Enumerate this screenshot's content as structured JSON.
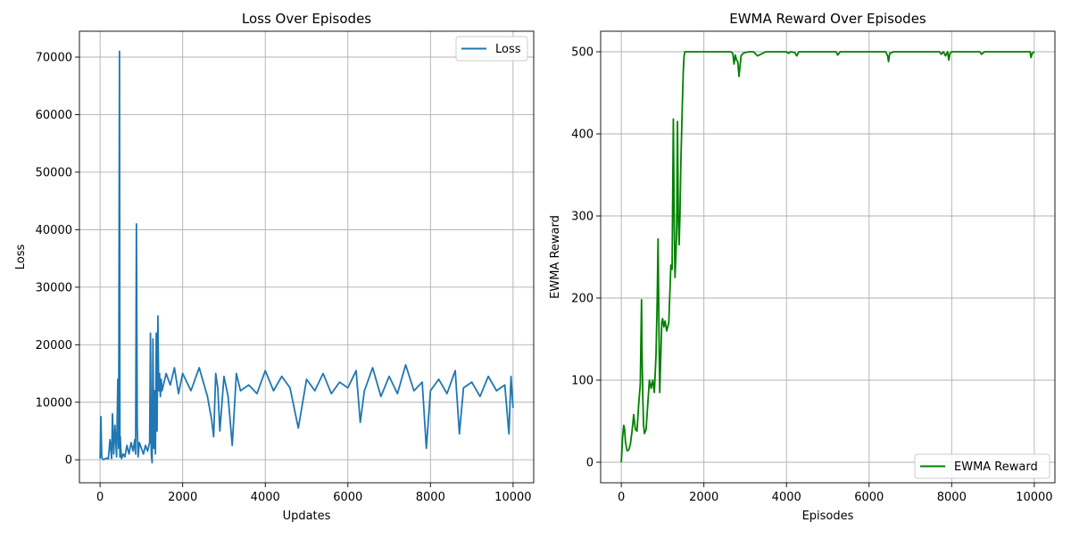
{
  "colors": {
    "loss_line": "#1f77b4",
    "reward_line": "#008000"
  },
  "chart_data": [
    {
      "type": "line",
      "title": "Loss Over Episodes",
      "xlabel": "Updates",
      "ylabel": "Loss",
      "xlim": [
        -500,
        10500
      ],
      "ylim": [
        -4000,
        74500
      ],
      "xticks": [
        0,
        2000,
        4000,
        6000,
        8000,
        10000
      ],
      "yticks": [
        0,
        10000,
        20000,
        30000,
        40000,
        50000,
        60000,
        70000
      ],
      "xtick_labels": [
        "0",
        "2000",
        "4000",
        "6000",
        "8000",
        "10000"
      ],
      "ytick_labels": [
        "0",
        "10000",
        "20000",
        "30000",
        "40000",
        "50000",
        "60000",
        "70000"
      ],
      "grid": true,
      "legend_position": "upper-right",
      "series": [
        {
          "name": "Loss",
          "color": "#1f77b4",
          "x": [
            0,
            20,
            40,
            60,
            80,
            100,
            130,
            160,
            200,
            240,
            280,
            300,
            330,
            360,
            400,
            430,
            450,
            470,
            480,
            490,
            500,
            520,
            560,
            600,
            650,
            700,
            750,
            800,
            840,
            860,
            880,
            900,
            920,
            950,
            1000,
            1050,
            1100,
            1150,
            1200,
            1220,
            1240,
            1260,
            1280,
            1300,
            1320,
            1340,
            1360,
            1380,
            1400,
            1420,
            1440,
            1460,
            1480,
            1500,
            1600,
            1700,
            1800,
            1900,
            2000,
            2200,
            2400,
            2600,
            2700,
            2750,
            2800,
            2850,
            2900,
            3000,
            3100,
            3200,
            3300,
            3400,
            3600,
            3800,
            4000,
            4200,
            4400,
            4600,
            4800,
            5000,
            5200,
            5400,
            5600,
            5800,
            6000,
            6200,
            6300,
            6400,
            6600,
            6800,
            7000,
            7200,
            7400,
            7600,
            7800,
            7900,
            8000,
            8200,
            8400,
            8600,
            8700,
            8800,
            9000,
            9200,
            9400,
            9600,
            9800,
            9900,
            9950,
            10000
          ],
          "y": [
            200,
            7500,
            500,
            100,
            50,
            100,
            200,
            300,
            150,
            3500,
            200,
            8000,
            1000,
            6000,
            500,
            14000,
            2000,
            71000,
            500,
            4000,
            2000,
            200,
            1000,
            500,
            2500,
            1000,
            3000,
            1500,
            3500,
            1000,
            41000,
            6000,
            500,
            3000,
            2000,
            1000,
            2500,
            1500,
            3000,
            22000,
            1000,
            -500,
            21000,
            2000,
            12000,
            1000,
            22000,
            5000,
            25000,
            12000,
            15000,
            11000,
            14000,
            12000,
            15000,
            13000,
            16000,
            11500,
            15000,
            12000,
            16000,
            11000,
            7000,
            4000,
            15000,
            12500,
            5000,
            14500,
            11000,
            2500,
            15000,
            12000,
            13000,
            11500,
            15500,
            12000,
            14500,
            12500,
            5500,
            14000,
            12000,
            15000,
            11500,
            13500,
            12500,
            15500,
            6500,
            12000,
            16000,
            11000,
            14500,
            11500,
            16500,
            12000,
            13500,
            2000,
            12000,
            14000,
            11500,
            15500,
            4500,
            12500,
            13500,
            11000,
            14500,
            12000,
            13000,
            4500,
            14500,
            9000
          ]
        }
      ]
    },
    {
      "type": "line",
      "title": "EWMA Reward Over Episodes",
      "xlabel": "Episodes",
      "ylabel": "EWMA Reward",
      "xlim": [
        -500,
        10500
      ],
      "ylim": [
        -25,
        525
      ],
      "xticks": [
        0,
        2000,
        4000,
        6000,
        8000,
        10000
      ],
      "yticks": [
        0,
        100,
        200,
        300,
        400,
        500
      ],
      "xtick_labels": [
        "0",
        "2000",
        "4000",
        "6000",
        "8000",
        "10000"
      ],
      "ytick_labels": [
        "0",
        "100",
        "200",
        "300",
        "400",
        "500"
      ],
      "grid": true,
      "legend_position": "lower-right",
      "series": [
        {
          "name": "EWMA Reward",
          "color": "#008000",
          "x": [
            0,
            30,
            60,
            80,
            100,
            140,
            180,
            220,
            260,
            300,
            340,
            380,
            420,
            460,
            490,
            500,
            520,
            540,
            560,
            600,
            640,
            680,
            720,
            760,
            800,
            840,
            870,
            890,
            910,
            930,
            950,
            980,
            1000,
            1030,
            1060,
            1100,
            1150,
            1200,
            1230,
            1260,
            1280,
            1300,
            1320,
            1340,
            1360,
            1380,
            1400,
            1420,
            1440,
            1460,
            1480,
            1500,
            1520,
            1540,
            1560,
            1580,
            1600,
            1700,
            2000,
            2500,
            2650,
            2700,
            2730,
            2760,
            2790,
            2820,
            2850,
            2900,
            2950,
            3000,
            3100,
            3200,
            3300,
            3500,
            3800,
            4000,
            4050,
            4100,
            4200,
            4250,
            4300,
            4500,
            5000,
            5200,
            5240,
            5300,
            5600,
            6000,
            6400,
            6450,
            6470,
            6500,
            6600,
            7000,
            7500,
            7700,
            7750,
            7800,
            7850,
            7900,
            7930,
            7960,
            8000,
            8500,
            8680,
            8720,
            8800,
            9000,
            9500,
            9850,
            9900,
            9920,
            9950,
            10000
          ],
          "y": [
            0,
            30,
            45,
            40,
            25,
            14,
            15,
            22,
            38,
            58,
            40,
            38,
            70,
            95,
            198,
            140,
            80,
            45,
            35,
            40,
            70,
            100,
            90,
            100,
            85,
            130,
            200,
            272,
            170,
            85,
            120,
            170,
            175,
            165,
            172,
            160,
            170,
            240,
            235,
            418,
            300,
            225,
            250,
            280,
            415,
            300,
            265,
            300,
            360,
            400,
            440,
            475,
            495,
            500,
            500,
            500,
            500,
            500,
            500,
            500,
            500,
            498,
            485,
            496,
            490,
            488,
            470,
            495,
            498,
            499,
            500,
            500,
            495,
            500,
            500,
            500,
            498,
            500,
            499,
            495,
            500,
            500,
            500,
            500,
            496,
            500,
            500,
            500,
            500,
            495,
            488,
            498,
            500,
            500,
            500,
            500,
            497,
            500,
            495,
            500,
            490,
            498,
            500,
            500,
            500,
            497,
            500,
            500,
            500,
            500,
            500,
            493,
            498,
            500
          ]
        }
      ]
    }
  ]
}
